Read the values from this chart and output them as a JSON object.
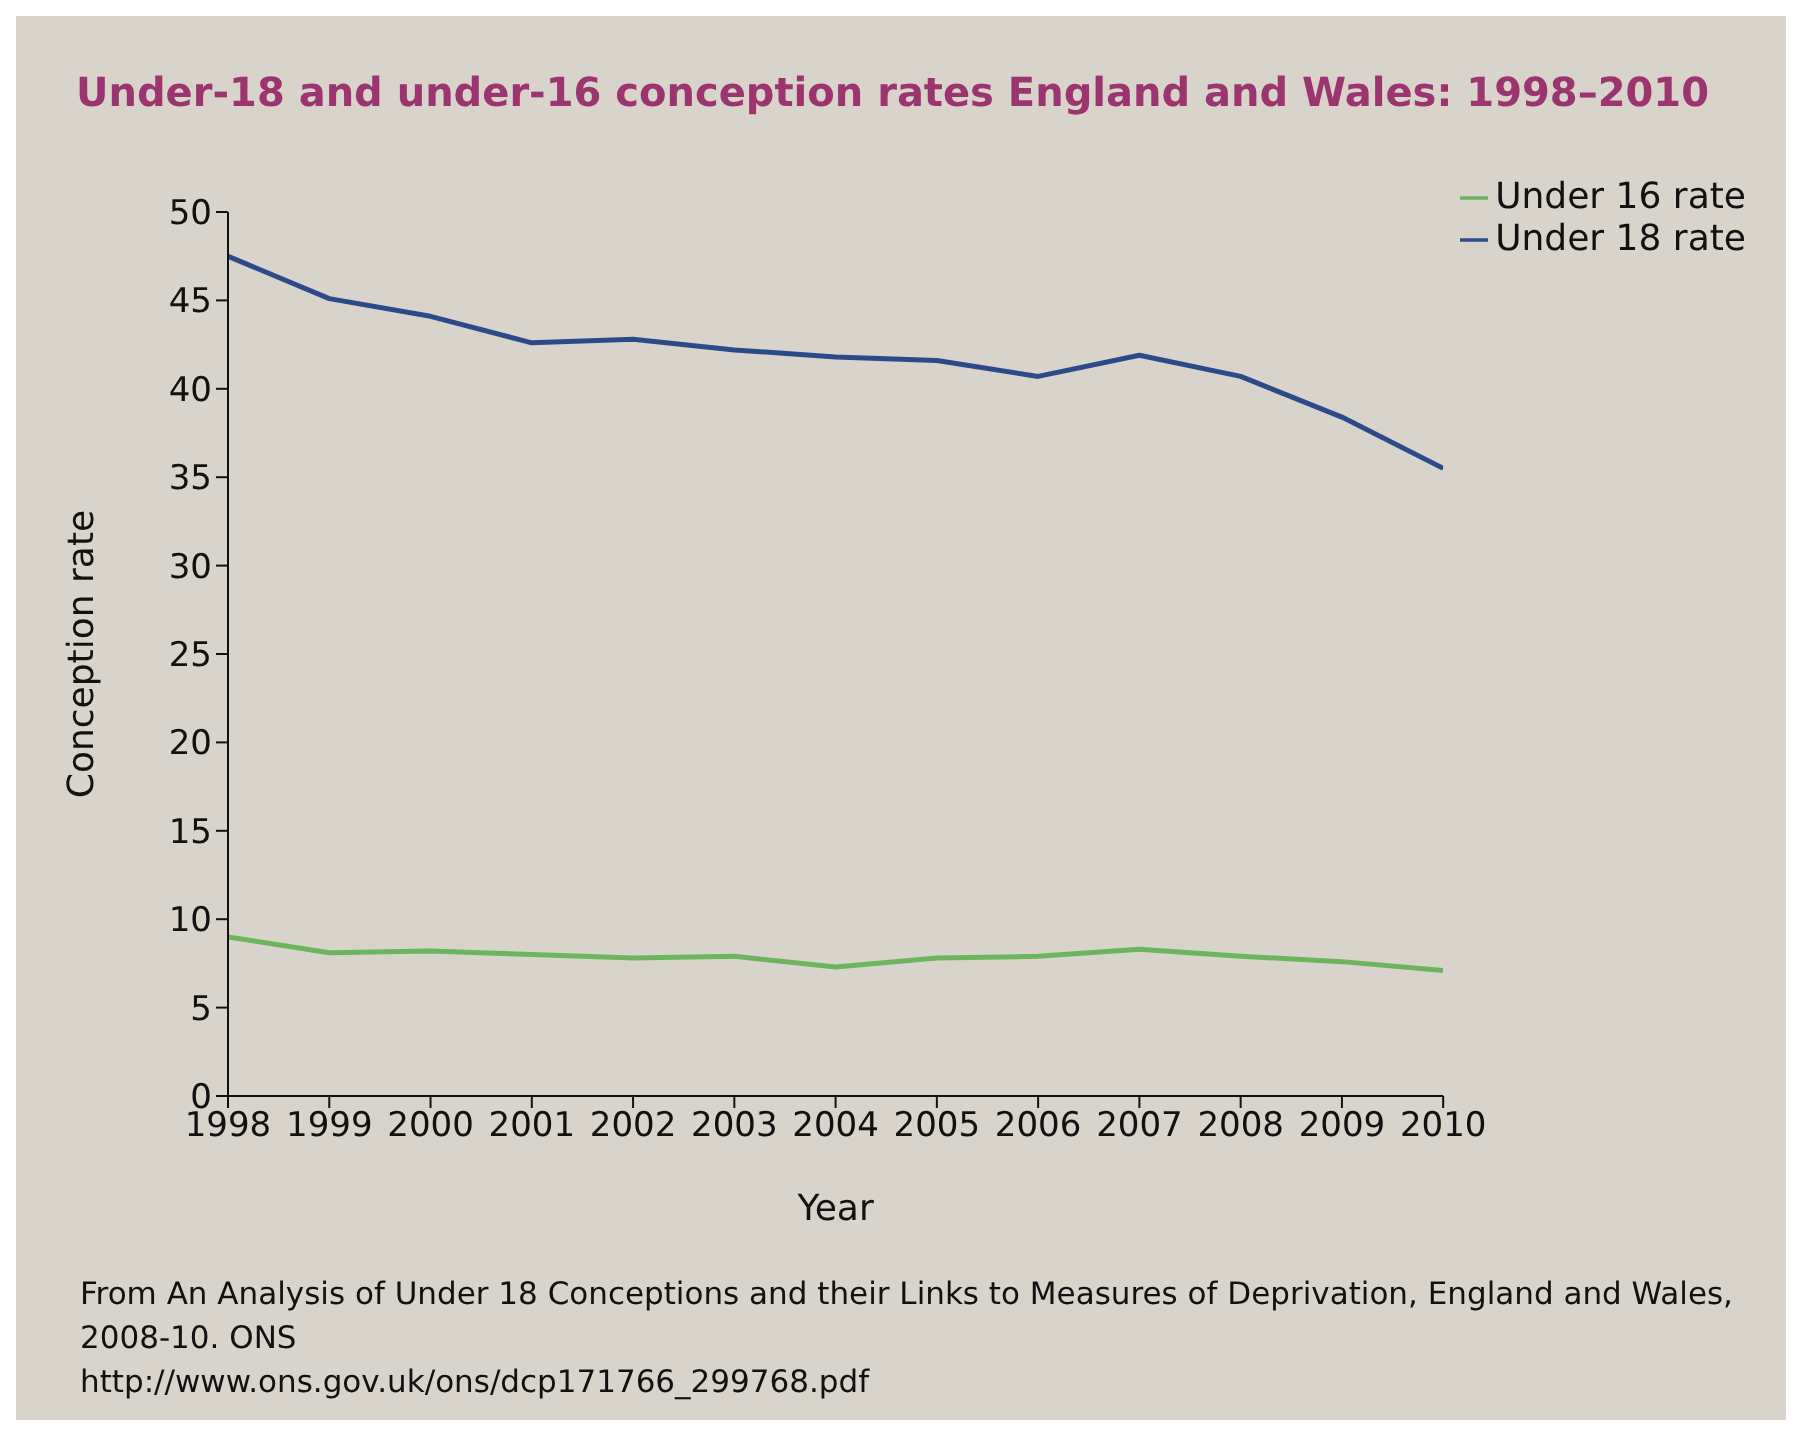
{
  "chart_data": {
    "type": "line",
    "title": "Under-18 and under-16 conception rates England and Wales: 1998–2010",
    "xlabel": "Year",
    "ylabel": "Conception rate",
    "x": [
      1998,
      1999,
      2000,
      2001,
      2002,
      2003,
      2004,
      2005,
      2006,
      2007,
      2008,
      2009,
      2010
    ],
    "series": [
      {
        "name": "Under 16 rate",
        "color": "#6cb45e",
        "values": [
          9.0,
          8.1,
          8.2,
          8.0,
          7.8,
          7.9,
          7.3,
          7.8,
          7.9,
          8.3,
          7.9,
          7.6,
          7.1
        ]
      },
      {
        "name": "Under 18 rate",
        "color": "#2c4a88",
        "values": [
          47.5,
          45.1,
          44.1,
          42.6,
          42.8,
          42.2,
          41.8,
          41.6,
          40.7,
          41.9,
          40.7,
          38.4,
          35.5
        ]
      }
    ],
    "xlim": [
      1998,
      2010
    ],
    "xticks": [
      1998,
      1999,
      2000,
      2001,
      2002,
      2003,
      2004,
      2005,
      2006,
      2007,
      2008,
      2009,
      2010
    ],
    "ylim": [
      0,
      50
    ],
    "yticks": [
      0,
      5,
      10,
      15,
      20,
      25,
      30,
      35,
      40,
      45,
      50
    ],
    "grid": false,
    "legend": "top right",
    "annotations": [
      "From An Analysis of Under 18 Conceptions and their Links to Measures of Deprivation, England and Wales, 2008-10. ONS",
      "http://www.ons.gov.uk/ons/dcp171766_299768.pdf"
    ]
  }
}
